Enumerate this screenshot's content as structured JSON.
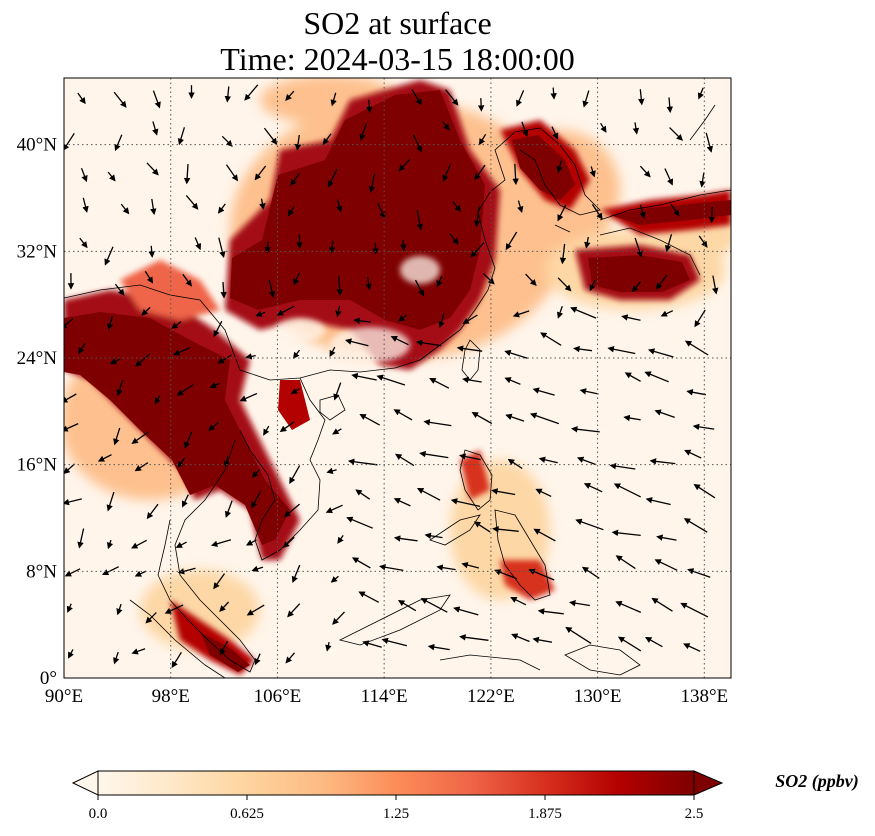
{
  "title": {
    "line1": "SO2 at surface",
    "line2": "Time: 2024-03-15 18:00:00"
  },
  "map": {
    "extent": {
      "lon": [
        90,
        140
      ],
      "lat": [
        0,
        45
      ]
    },
    "lon_ticks": [
      {
        "value": 90,
        "label": "90°E"
      },
      {
        "value": 98,
        "label": "98°E"
      },
      {
        "value": 106,
        "label": "106°E"
      },
      {
        "value": 114,
        "label": "114°E"
      },
      {
        "value": 122,
        "label": "122°E"
      },
      {
        "value": 130,
        "label": "130°E"
      },
      {
        "value": 138,
        "label": "138°E"
      }
    ],
    "lat_ticks": [
      {
        "value": 0,
        "label": "0°"
      },
      {
        "value": 8,
        "label": "8°N"
      },
      {
        "value": 16,
        "label": "16°N"
      },
      {
        "value": 24,
        "label": "24°N"
      },
      {
        "value": 32,
        "label": "32°N"
      },
      {
        "value": 40,
        "label": "40°N"
      }
    ],
    "gridlines": true,
    "background_color": "#fff5eb",
    "high_color": "#7f0000"
  },
  "colorbar": {
    "label": "SO2 (ppbv)",
    "min": 0.0,
    "max": 2.5,
    "extend": "both",
    "ticks": [
      {
        "value": 0.0,
        "label": "0.0"
      },
      {
        "value": 0.625,
        "label": "0.625"
      },
      {
        "value": 1.25,
        "label": "1.25"
      },
      {
        "value": 1.875,
        "label": "1.875"
      },
      {
        "value": 2.5,
        "label": "2.5"
      }
    ],
    "colormap": "OrRd",
    "colors": [
      "#fff7ec",
      "#fee8c8",
      "#fdd49e",
      "#fdbb84",
      "#fc8d59",
      "#ef6548",
      "#d7301f",
      "#b30000",
      "#7f0000"
    ]
  }
}
